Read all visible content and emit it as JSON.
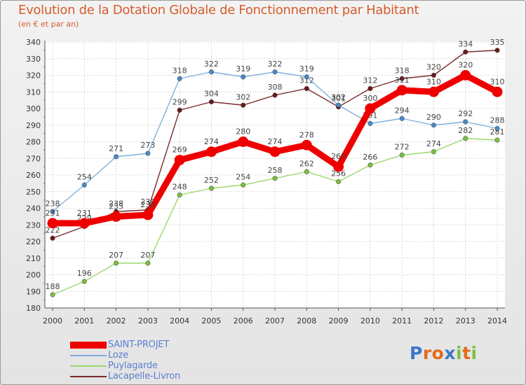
{
  "title": "Evolution de la Dotation Globale de Fonctionnement par Habitant",
  "subtitle": "(en € et par an)",
  "logo": {
    "text": "Proxiti",
    "letters": [
      "P",
      "r",
      "o",
      "x",
      "i",
      "t",
      "i"
    ],
    "colors": [
      "#3a78c8",
      "#e36c1c",
      "#e36c1c",
      "#3a78c8",
      "#7ac143",
      "#e36c1c",
      "#7ac143"
    ]
  },
  "chart_data": {
    "type": "line",
    "title": "Evolution de la Dotation Globale de Fonctionnement par Habitant",
    "ylabel": "(en € et par an)",
    "xlabel": "",
    "ylim": [
      180,
      340
    ],
    "yticks": [
      180,
      190,
      200,
      210,
      220,
      230,
      240,
      250,
      260,
      270,
      280,
      290,
      300,
      310,
      320,
      330,
      340
    ],
    "categories": [
      "2000",
      "2001",
      "2002",
      "2003",
      "2004",
      "2005",
      "2006",
      "2007",
      "2008",
      "2009",
      "2010",
      "2011",
      "2012",
      "2013",
      "2014"
    ],
    "grid": true,
    "legend": "bottom-left",
    "series": [
      {
        "name": "Lacapelle-Livron",
        "color": "#7a2a2a",
        "marker": "#6b1a1a",
        "values": [
          222,
          229,
          238,
          239,
          299,
          304,
          302,
          308,
          312,
          301,
          312,
          318,
          320,
          334,
          335
        ],
        "labels": [
          "222",
          "229",
          "238",
          "239",
          "299",
          "304",
          "302",
          "308",
          "312",
          "301",
          "312",
          "318",
          "320",
          "334",
          "335"
        ]
      },
      {
        "name": "Puylagarde",
        "color": "#9ad86b",
        "marker": "#7ac143",
        "values": [
          188,
          196,
          207,
          207,
          248,
          252,
          254,
          258,
          262,
          256,
          266,
          272,
          274,
          282,
          281
        ],
        "labels": [
          "188",
          "196",
          "207",
          "207",
          "248",
          "252",
          "254",
          "258",
          "262",
          "256",
          "266",
          "272",
          "274",
          "282",
          "281"
        ]
      },
      {
        "name": "Loze",
        "color": "#7fb0dd",
        "marker": "#4a8cc8",
        "values": [
          238,
          254,
          271,
          273,
          318,
          322,
          319,
          322,
          319,
          302,
          291,
          294,
          290,
          292,
          288
        ],
        "labels": [
          "238",
          "254",
          "271",
          "273",
          "318",
          "322",
          "319",
          "322",
          "319",
          "302",
          "291",
          "294",
          "290",
          "292",
          "288"
        ]
      },
      {
        "name": "SAINT-PROJET",
        "color": "#ee0000",
        "marker": "#ee0000",
        "values": [
          231,
          231,
          235,
          236,
          269,
          274,
          280,
          274,
          278,
          265,
          300,
          311,
          310,
          320,
          310
        ],
        "labels": [
          "231",
          "231",
          "235",
          "236",
          "269",
          "274",
          "280",
          "274",
          "278",
          "265",
          "300",
          "311",
          "310",
          "320",
          "310"
        ]
      }
    ]
  },
  "legend": [
    {
      "name": "SAINT-PROJET",
      "color": "#ee0000",
      "thickness": 10
    },
    {
      "name": "Loze",
      "color": "#7fb0dd",
      "thickness": 2
    },
    {
      "name": "Puylagarde",
      "color": "#9ad86b",
      "thickness": 2
    },
    {
      "name": "Lacapelle-Livron",
      "color": "#7a2a2a",
      "thickness": 2
    }
  ]
}
